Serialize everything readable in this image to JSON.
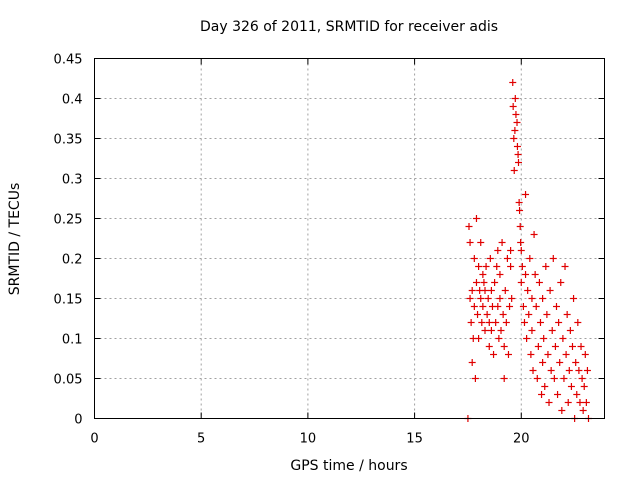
{
  "chart_data": {
    "type": "scatter",
    "title": "Day 326 of 2011, SRMTID for receiver adis",
    "xlabel": "GPS time / hours",
    "ylabel": "SRMTID / TECUs",
    "xlim": [
      0,
      23.9
    ],
    "ylim": [
      0,
      0.45
    ],
    "xticks": [
      0,
      5,
      10,
      15,
      20
    ],
    "xtick_labels": [
      "0",
      "5",
      "10",
      "15",
      "20"
    ],
    "yticks": [
      0,
      0.05,
      0.1,
      0.15,
      0.2,
      0.25,
      0.3,
      0.35,
      0.4,
      0.45
    ],
    "ytick_labels": [
      "0",
      "0.05",
      "0.1",
      "0.15",
      "0.2",
      "0.25",
      "0.3",
      "0.35",
      "0.4",
      "0.45"
    ],
    "grid": true,
    "marker": "plus",
    "color": "#e00000",
    "series": [
      {
        "name": "SRMTID",
        "points": [
          [
            17.5,
            0.0
          ],
          [
            17.55,
            0.24
          ],
          [
            17.6,
            0.22
          ],
          [
            17.6,
            0.15
          ],
          [
            17.65,
            0.12
          ],
          [
            17.7,
            0.07
          ],
          [
            17.7,
            0.16
          ],
          [
            17.75,
            0.1
          ],
          [
            17.8,
            0.14
          ],
          [
            17.8,
            0.2
          ],
          [
            17.85,
            0.05
          ],
          [
            17.9,
            0.25
          ],
          [
            17.9,
            0.17
          ],
          [
            17.95,
            0.13
          ],
          [
            18.0,
            0.19
          ],
          [
            18.0,
            0.1
          ],
          [
            18.05,
            0.16
          ],
          [
            18.1,
            0.15
          ],
          [
            18.1,
            0.22
          ],
          [
            18.15,
            0.12
          ],
          [
            18.2,
            0.18
          ],
          [
            18.2,
            0.14
          ],
          [
            18.25,
            0.17
          ],
          [
            18.3,
            0.11
          ],
          [
            18.3,
            0.16
          ],
          [
            18.35,
            0.19
          ],
          [
            18.4,
            0.13
          ],
          [
            18.45,
            0.15
          ],
          [
            18.5,
            0.09
          ],
          [
            18.5,
            0.12
          ],
          [
            18.55,
            0.2
          ],
          [
            18.6,
            0.16
          ],
          [
            18.6,
            0.11
          ],
          [
            18.65,
            0.14
          ],
          [
            18.7,
            0.08
          ],
          [
            18.75,
            0.17
          ],
          [
            18.8,
            0.12
          ],
          [
            18.85,
            0.19
          ],
          [
            18.9,
            0.21
          ],
          [
            18.9,
            0.14
          ],
          [
            18.95,
            0.1
          ],
          [
            19.0,
            0.18
          ],
          [
            19.0,
            0.15
          ],
          [
            19.05,
            0.11
          ],
          [
            19.1,
            0.22
          ],
          [
            19.15,
            0.13
          ],
          [
            19.2,
            0.09
          ],
          [
            19.2,
            0.05
          ],
          [
            19.25,
            0.16
          ],
          [
            19.3,
            0.12
          ],
          [
            19.35,
            0.2
          ],
          [
            19.4,
            0.08
          ],
          [
            19.45,
            0.14
          ],
          [
            19.5,
            0.19
          ],
          [
            19.5,
            0.21
          ],
          [
            19.55,
            0.15
          ],
          [
            19.6,
            0.42
          ],
          [
            19.62,
            0.39
          ],
          [
            19.65,
            0.35
          ],
          [
            19.67,
            0.31
          ],
          [
            19.7,
            0.36
          ],
          [
            19.72,
            0.4
          ],
          [
            19.75,
            0.38
          ],
          [
            19.8,
            0.37
          ],
          [
            19.82,
            0.34
          ],
          [
            19.85,
            0.33
          ],
          [
            19.87,
            0.32
          ],
          [
            19.9,
            0.27
          ],
          [
            19.92,
            0.26
          ],
          [
            19.95,
            0.24
          ],
          [
            19.97,
            0.22
          ],
          [
            20.0,
            0.21
          ],
          [
            20.0,
            0.17
          ],
          [
            20.05,
            0.19
          ],
          [
            20.1,
            0.14
          ],
          [
            20.15,
            0.12
          ],
          [
            20.2,
            0.28
          ],
          [
            20.2,
            0.18
          ],
          [
            20.25,
            0.1
          ],
          [
            20.3,
            0.16
          ],
          [
            20.35,
            0.13
          ],
          [
            20.4,
            0.2
          ],
          [
            20.45,
            0.08
          ],
          [
            20.5,
            0.15
          ],
          [
            20.5,
            0.11
          ],
          [
            20.55,
            0.06
          ],
          [
            20.6,
            0.23
          ],
          [
            20.65,
            0.18
          ],
          [
            20.7,
            0.14
          ],
          [
            20.75,
            0.05
          ],
          [
            20.8,
            0.09
          ],
          [
            20.85,
            0.17
          ],
          [
            20.9,
            0.12
          ],
          [
            20.95,
            0.03
          ],
          [
            21.0,
            0.07
          ],
          [
            21.0,
            0.15
          ],
          [
            21.05,
            0.1
          ],
          [
            21.1,
            0.04
          ],
          [
            21.15,
            0.19
          ],
          [
            21.2,
            0.13
          ],
          [
            21.25,
            0.08
          ],
          [
            21.3,
            0.02
          ],
          [
            21.35,
            0.16
          ],
          [
            21.4,
            0.06
          ],
          [
            21.45,
            0.11
          ],
          [
            21.5,
            0.2
          ],
          [
            21.55,
            0.05
          ],
          [
            21.6,
            0.09
          ],
          [
            21.65,
            0.14
          ],
          [
            21.7,
            0.03
          ],
          [
            21.75,
            0.12
          ],
          [
            21.8,
            0.07
          ],
          [
            21.85,
            0.17
          ],
          [
            21.9,
            0.01
          ],
          [
            21.95,
            0.1
          ],
          [
            22.0,
            0.05
          ],
          [
            22.05,
            0.19
          ],
          [
            22.1,
            0.08
          ],
          [
            22.15,
            0.13
          ],
          [
            22.2,
            0.02
          ],
          [
            22.25,
            0.06
          ],
          [
            22.3,
            0.11
          ],
          [
            22.35,
            0.04
          ],
          [
            22.4,
            0.09
          ],
          [
            22.45,
            0.15
          ],
          [
            22.5,
            0.0
          ],
          [
            22.55,
            0.07
          ],
          [
            22.6,
            0.03
          ],
          [
            22.65,
            0.12
          ],
          [
            22.7,
            0.06
          ],
          [
            22.75,
            0.02
          ],
          [
            22.8,
            0.09
          ],
          [
            22.85,
            0.05
          ],
          [
            22.9,
            0.01
          ],
          [
            22.95,
            0.04
          ],
          [
            23.0,
            0.08
          ],
          [
            23.05,
            0.02
          ],
          [
            23.1,
            0.06
          ],
          [
            23.15,
            0.0
          ]
        ]
      }
    ]
  }
}
